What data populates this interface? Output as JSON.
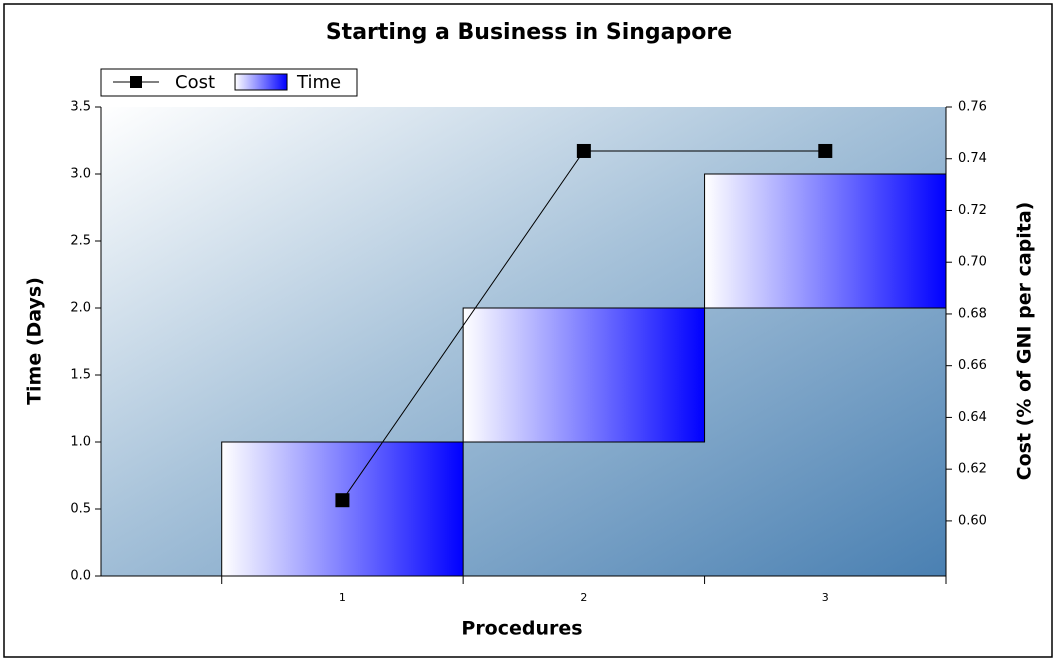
{
  "chart_data": {
    "type": "waterfall",
    "title": "Starting a Business in Singapore",
    "x_label": "Procedures",
    "y_label": "Time (Days)",
    "y2_label": "Cost (% of GNI per capita)",
    "x": [
      1,
      2,
      3
    ],
    "xlim": [
      0,
      3.5
    ],
    "xticks": [
      1,
      2,
      3
    ],
    "ylim": [
      0,
      3.5
    ],
    "yticks": [
      {
        "value": 0,
        "label": "0.0"
      },
      0.5,
      {
        "value": 1,
        "label": "1.0"
      },
      1.5,
      {
        "value": 2,
        "label": "2.0"
      },
      2.5,
      {
        "value": 3,
        "label": "3.0"
      },
      3.5
    ],
    "y2lim": [
      0.5787,
      0.76
    ],
    "y2ticks": [
      {
        "value": 0.6,
        "label": "0.60"
      },
      0.62,
      0.64,
      0.66,
      0.68,
      {
        "value": 0.7,
        "label": "0.70"
      },
      0.72,
      0.74,
      0.76
    ],
    "series": [
      {
        "name": "Cost",
        "color": "#000000",
        "type": "line",
        "axis": "y2",
        "values": [
          0.608,
          0.743,
          0.743
        ]
      },
      {
        "name": "Time",
        "color": "#0000ff",
        "type": "bar",
        "values": [
          1,
          1,
          1
        ]
      }
    ],
    "legend": "top-left"
  }
}
